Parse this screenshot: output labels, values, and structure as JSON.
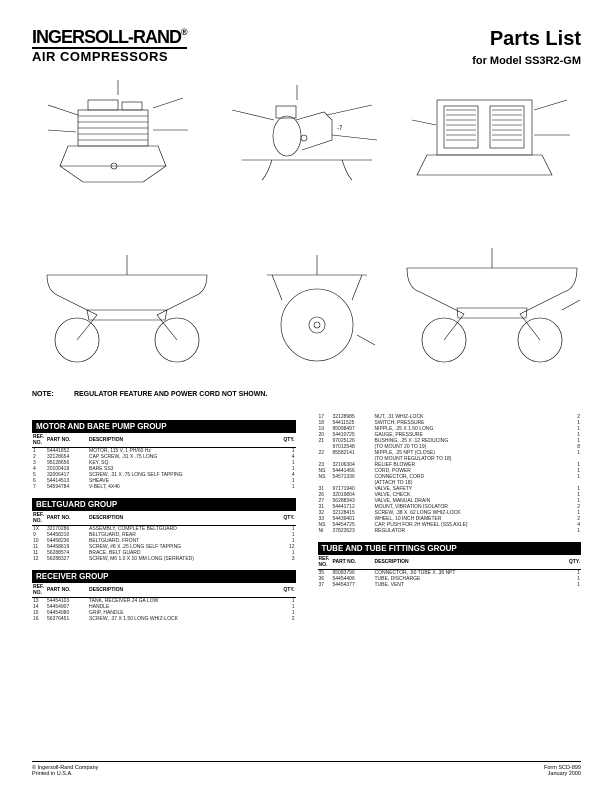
{
  "brand": {
    "main": "INGERSOLL-RAND",
    "reg": "®",
    "sub": "AIR COMPRESSORS"
  },
  "title": "Parts List",
  "subtitle_prefix": "for Model ",
  "model": "SS3R2-GM",
  "note_label": "NOTE:",
  "note_text": "REGULATOR FEATURE AND POWER CORD NOT SHOWN.",
  "column_headers": {
    "ref": "REF.",
    "ref2": "NO.",
    "pn": "PART NO.",
    "desc": "DESCRIPTION",
    "qty": "QTY."
  },
  "groups": {
    "motor": {
      "title": "MOTOR AND BARE PUMP GROUP",
      "rows": [
        {
          "ref": "1",
          "pn": "54441852",
          "desc": "MOTOR, 115 V, 1 PH/60 Hz",
          "qty": "1"
        },
        {
          "ref": "2",
          "pn": "32128654",
          "desc": "CAP SCREW, .31 X .75 LONG",
          "qty": "4"
        },
        {
          "ref": "3",
          "pn": "95128656",
          "desc": "KEY, SQ.",
          "qty": "1"
        },
        {
          "ref": "4",
          "pn": "20100418",
          "desc": "BARE SS3",
          "qty": "1"
        },
        {
          "ref": "5",
          "pn": "32006417",
          "desc": "SCREW, .31 X .75 LONG SELF TAPPING",
          "qty": "4"
        },
        {
          "ref": "6",
          "pn": "54414513",
          "desc": "SHEAVE",
          "qty": "1"
        },
        {
          "ref": "7",
          "pn": "54594784",
          "desc": "V-BELT, 4X46",
          "qty": "1"
        }
      ]
    },
    "beltguard": {
      "title": "BELTGUARD GROUP",
      "rows": [
        {
          "ref": "1X",
          "pn": "32170286",
          "desc": "ASSEMBLY, COMPLETE BELTGUARD",
          "qty": "1"
        },
        {
          "ref": "9",
          "pn": "54458210",
          "desc": "BELTGUARD, REAR",
          "qty": "1"
        },
        {
          "ref": "10",
          "pn": "54458236",
          "desc": "BELTGUARD, FRONT",
          "qty": "1"
        },
        {
          "ref": "11",
          "pn": "54458619",
          "desc": "SCREW, #8 X .25 LONG SELF TAPPING",
          "qty": "12"
        },
        {
          "ref": "11",
          "pn": "56288574",
          "desc": "BRACE, BELT GUARD",
          "qty": "1"
        },
        {
          "ref": "12",
          "pn": "56288327",
          "desc": "SCREW, M6 1.0 X 10 MM LONG (SERRATED)",
          "qty": "3"
        }
      ]
    },
    "receiver": {
      "title": "RECEIVER GROUP",
      "rows": [
        {
          "ref": "13",
          "pn": "54454103",
          "desc": "TANK, RECEIVER 24 GA LOW",
          "qty": "1"
        },
        {
          "ref": "14",
          "pn": "54454907",
          "desc": "HANDLE",
          "qty": "1"
        },
        {
          "ref": "15",
          "pn": "54454080",
          "desc": "GRIP, HANDLE",
          "qty": "1"
        },
        {
          "ref": "16",
          "pn": "56376451",
          "desc": "SCREW, .37 X 1.50 LONG WHIZ-LOCK",
          "qty": "2"
        }
      ]
    },
    "receiver_cont": {
      "rows": [
        {
          "ref": "17",
          "pn": "32128985",
          "desc": "NUT, .31 WHIZ-LOCK",
          "qty": "2"
        },
        {
          "ref": "18",
          "pn": "54411525",
          "desc": "SWITCH, PRESSURE",
          "qty": "1"
        },
        {
          "ref": "19",
          "pn": "95098497",
          "desc": "NIPPLE, .25 X 1.50 LONG",
          "qty": "1"
        },
        {
          "ref": "20",
          "pn": "54410725",
          "desc": "GAUGE, PRESSURE",
          "qty": "1"
        },
        {
          "ref": "21",
          "pn": "97025126",
          "desc": "BUSHING, .25 X .12 REDUCING",
          "qty": "1"
        },
        {
          "ref": "",
          "pn": "97012548",
          "desc": "(TO MOUNT 20 TO 19)",
          "qty": "8"
        },
        {
          "ref": "22",
          "pn": "85582141",
          "desc": "NIPPLE, .25 NPT (CLOSE)",
          "qty": "1"
        },
        {
          "ref": "",
          "pn": "",
          "desc": "(TO MOUNT REGULATOR TO 18)",
          "qty": ""
        },
        {
          "ref": "23",
          "pn": "32106304",
          "desc": "RELIEF BLOWER",
          "qty": "1"
        },
        {
          "ref": "NS",
          "pn": "54441456",
          "desc": "CORD, POWER",
          "qty": "1"
        },
        {
          "ref": "NS",
          "pn": "54571336",
          "desc": "CONNECTOR, CORD",
          "qty": "1"
        },
        {
          "ref": "",
          "pn": "",
          "desc": "(ATTACH TO 18)",
          "qty": ""
        },
        {
          "ref": "31",
          "pn": "97171940",
          "desc": "VALVE, SAFETY",
          "qty": "1"
        },
        {
          "ref": "26",
          "pn": "32019804",
          "desc": "VALVE, CHECK",
          "qty": "1"
        },
        {
          "ref": "27",
          "pn": "56288343",
          "desc": "VALVE, MANUAL DRAIN",
          "qty": "1"
        },
        {
          "ref": "31",
          "pn": "54441712",
          "desc": "MOUNT, VIBRATION ISOLATOR",
          "qty": "2"
        },
        {
          "ref": "32",
          "pn": "32128415",
          "desc": "SCREW, .38 X .62 LONG WHIZ-LOCK",
          "qty": "1"
        },
        {
          "ref": "33",
          "pn": "54439401",
          "desc": "WHEEL, 10 INCH DIAMETER",
          "qty": "2"
        },
        {
          "ref": "NS",
          "pn": "54454725",
          "desc": "CAP, PUSH FOR 2H WHEEL (SS5 AXLE)",
          "qty": "4"
        },
        {
          "ref": "NI",
          "pn": "37823523",
          "desc": "REGULATOR",
          "qty": "1"
        }
      ]
    },
    "tube": {
      "title": "TUBE AND TUBE FITTINGS GROUP",
      "rows": [
        {
          "ref": "35",
          "pn": "95083796",
          "desc": "CONNECTOR, .50 TUBE X .38 NPT",
          "qty": "1"
        },
        {
          "ref": "36",
          "pn": "54454406",
          "desc": "TUBE, DISCHARGE",
          "qty": "1"
        },
        {
          "ref": "37",
          "pn": "54454377",
          "desc": "TUBE, VENT",
          "qty": "1"
        }
      ]
    }
  },
  "footer": {
    "copyright": "© Ingersoll-Rand Company",
    "origin": "Printed in U.S.A.",
    "form": "Form SCD-899",
    "date": "January 2000"
  },
  "diagram": {
    "stroke": "#000000",
    "stroke_width": 0.6,
    "background": "#ffffff"
  }
}
